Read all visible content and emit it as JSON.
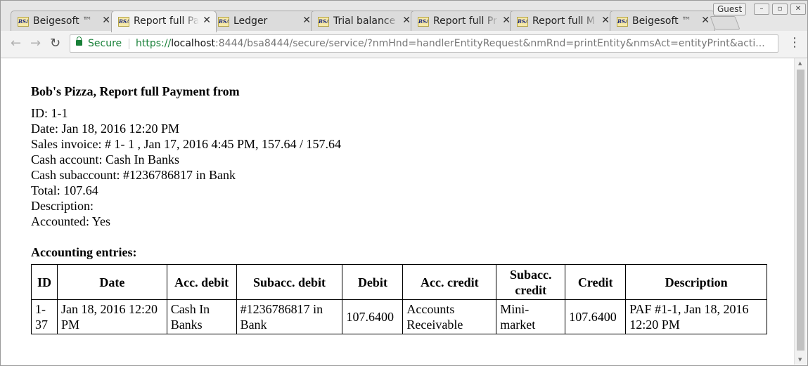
{
  "browser": {
    "tabs": [
      {
        "favicon": "BSA",
        "title": "Beigesoft ™",
        "active": false
      },
      {
        "favicon": "BSA",
        "title": "Report full Pa",
        "active": true
      },
      {
        "favicon": "BSA",
        "title": "Ledger",
        "active": false
      },
      {
        "favicon": "BSA",
        "title": "Trial balance",
        "active": false
      },
      {
        "favicon": "BSA",
        "title": "Report full Pr",
        "active": false
      },
      {
        "favicon": "BSA",
        "title": "Report full M",
        "active": false
      },
      {
        "favicon": "BSA",
        "title": "Beigesoft ™",
        "active": false
      }
    ],
    "profile_label": "Guest",
    "security_label": "Secure",
    "url": {
      "scheme": "https://",
      "host": "localhost",
      "rest": ":8444/bsa8444/secure/service/?nmHnd=handlerEntityRequest&nmRnd=printEntity&nmsAct=entityPrint&acti..."
    }
  },
  "document": {
    "title": "Bob's Pizza, Report full Payment from",
    "fields": [
      "ID: 1-1",
      "Date: Jan 18, 2016 12:20 PM",
      "Sales invoice: # 1- 1 , Jan 17, 2016 4:45 PM, 157.64 / 157.64",
      "Cash account: Cash In Banks",
      "Cash subaccount: #1236786817 in Bank",
      "Total: 107.64",
      "Description:",
      "Accounted: Yes"
    ],
    "entries_title": "Accounting entries:",
    "entries_table": {
      "headers": [
        "ID",
        "Date",
        "Acc. debit",
        "Subacc. debit",
        "Debit",
        "Acc. credit",
        "Subacc. credit",
        "Credit",
        "Description"
      ],
      "rows": [
        [
          "1-37",
          "Jan 18, 2016 12:20 PM",
          "Cash In Banks",
          "#1236786817 in Bank",
          "107.6400",
          "Accounts Receivable",
          "Mini-market",
          "107.6400",
          "PAF #1-1, Jan 18, 2016 12:20 PM"
        ]
      ]
    }
  }
}
